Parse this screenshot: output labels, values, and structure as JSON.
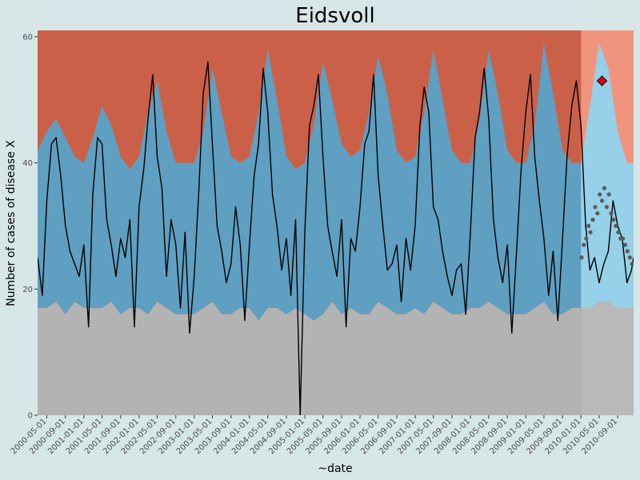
{
  "chart_data": {
    "type": "area",
    "title": "Eidsvoll",
    "xlabel": "~date",
    "ylabel": "Number of cases of disease X",
    "ylim": [
      0,
      61
    ],
    "xlim": [
      "2000-03-01",
      "2010-12-15"
    ],
    "grid": false,
    "y_ticks": [
      0,
      20,
      40,
      60
    ],
    "x_ticks": [
      "2000-05-01",
      "2000-09-01",
      "2001-01-01",
      "2001-05-01",
      "2001-09-01",
      "2002-01-01",
      "2002-05-01",
      "2002-09-01",
      "2003-01-01",
      "2003-05-01",
      "2003-09-01",
      "2004-01-01",
      "2004-05-01",
      "2004-09-01",
      "2005-01-01",
      "2005-05-01",
      "2005-09-01",
      "2006-01-01",
      "2006-05-01",
      "2006-09-01",
      "2007-01-01",
      "2007-05-01",
      "2007-09-01",
      "2008-01-01",
      "2008-05-01",
      "2008-09-01",
      "2009-01-01",
      "2009-05-01",
      "2009-09-01",
      "2010-01-01",
      "2010-05-01",
      "2010-09-01"
    ],
    "colors": {
      "panel_background": "#b0b0b0",
      "baseline_band": "#b3b3b3",
      "expected_band": "#5f9fc1",
      "alert_band": "#cb6048",
      "forecast_expected_band": "#8ecde8",
      "forecast_alert_band": "#f08b73",
      "forecast_shade": "#ffffff",
      "observed_line": "#000000",
      "forecast_points": "#5a5a5a",
      "outbreak_marker": "#e0001a"
    },
    "series": [
      {
        "name": "Lower threshold",
        "x": [
          "2000-03-01",
          "2000-05-01",
          "2000-07-01",
          "2000-09-01",
          "2000-11-01",
          "2001-01-01",
          "2001-03-01",
          "2001-05-01",
          "2001-07-01",
          "2001-09-01",
          "2001-11-01",
          "2002-01-01",
          "2002-03-01",
          "2002-05-01",
          "2002-07-01",
          "2002-09-01",
          "2002-11-01",
          "2003-01-01",
          "2003-03-01",
          "2003-05-01",
          "2003-07-01",
          "2003-09-01",
          "2003-11-01",
          "2004-01-01",
          "2004-03-01",
          "2004-05-01",
          "2004-07-01",
          "2004-09-01",
          "2004-11-01",
          "2005-01-01",
          "2005-03-01",
          "2005-05-01",
          "2005-07-01",
          "2005-09-01",
          "2005-11-01",
          "2006-01-01",
          "2006-03-01",
          "2006-05-01",
          "2006-07-01",
          "2006-09-01",
          "2006-11-01",
          "2007-01-01",
          "2007-03-01",
          "2007-05-01",
          "2007-07-01",
          "2007-09-01",
          "2007-11-01",
          "2008-01-01",
          "2008-03-01",
          "2008-05-01",
          "2008-07-01",
          "2008-09-01",
          "2008-11-01",
          "2009-01-01",
          "2009-03-01",
          "2009-05-01",
          "2009-07-01",
          "2009-09-01",
          "2009-11-01",
          "2010-01-01",
          "2010-03-01",
          "2010-05-01",
          "2010-07-01",
          "2010-09-01",
          "2010-11-01",
          "2010-12-15"
        ],
        "values": [
          17,
          17,
          18,
          16,
          18,
          17,
          17,
          17,
          18,
          16,
          17,
          17,
          16,
          18,
          17,
          16,
          16,
          16,
          17,
          18,
          16,
          16,
          17,
          17,
          15,
          17,
          17,
          16,
          17,
          16,
          15,
          16,
          18,
          16,
          17,
          16,
          16,
          18,
          17,
          16,
          16,
          17,
          16,
          18,
          17,
          16,
          16,
          17,
          17,
          18,
          17,
          16,
          16,
          16,
          17,
          18,
          16,
          16,
          17,
          17,
          17,
          18,
          18,
          17,
          17,
          17
        ]
      },
      {
        "name": "Upper threshold",
        "x": [
          "2000-03-01",
          "2000-05-01",
          "2000-07-01",
          "2000-09-01",
          "2000-11-01",
          "2001-01-01",
          "2001-03-01",
          "2001-05-01",
          "2001-07-01",
          "2001-09-01",
          "2001-11-01",
          "2002-01-01",
          "2002-03-01",
          "2002-05-01",
          "2002-07-01",
          "2002-09-01",
          "2002-11-01",
          "2003-01-01",
          "2003-03-01",
          "2003-05-01",
          "2003-07-01",
          "2003-09-01",
          "2003-11-01",
          "2004-01-01",
          "2004-03-01",
          "2004-05-01",
          "2004-07-01",
          "2004-09-01",
          "2004-11-01",
          "2005-01-01",
          "2005-03-01",
          "2005-05-01",
          "2005-07-01",
          "2005-09-01",
          "2005-11-01",
          "2006-01-01",
          "2006-03-01",
          "2006-05-01",
          "2006-07-01",
          "2006-09-01",
          "2006-11-01",
          "2007-01-01",
          "2007-03-01",
          "2007-05-01",
          "2007-07-01",
          "2007-09-01",
          "2007-11-01",
          "2008-01-01",
          "2008-03-01",
          "2008-05-01",
          "2008-07-01",
          "2008-09-01",
          "2008-11-01",
          "2009-01-01",
          "2009-03-01",
          "2009-05-01",
          "2009-07-01",
          "2009-09-01",
          "2009-11-01",
          "2010-01-01",
          "2010-03-01",
          "2010-05-01",
          "2010-07-01",
          "2010-09-01",
          "2010-11-01",
          "2010-12-15"
        ],
        "values": [
          42,
          45,
          47,
          44,
          41,
          40,
          44,
          49,
          46,
          41,
          39,
          41,
          48,
          53,
          45,
          40,
          40,
          40,
          45,
          55,
          48,
          41,
          40,
          41,
          48,
          58,
          50,
          41,
          39,
          40,
          46,
          56,
          50,
          43,
          41,
          42,
          48,
          57,
          51,
          42,
          40,
          41,
          48,
          58,
          50,
          42,
          40,
          40,
          47,
          58,
          51,
          42,
          40,
          40,
          46,
          59,
          51,
          42,
          40,
          40,
          49,
          59,
          55,
          45,
          40,
          40
        ]
      },
      {
        "name": "Observed cases",
        "x": [
          "2000-03-01",
          "2000-04-01",
          "2000-05-01",
          "2000-06-01",
          "2000-07-01",
          "2000-08-01",
          "2000-09-01",
          "2000-10-01",
          "2000-11-01",
          "2000-12-01",
          "2001-01-01",
          "2001-02-01",
          "2001-03-01",
          "2001-04-01",
          "2001-05-01",
          "2001-06-01",
          "2001-07-01",
          "2001-08-01",
          "2001-09-01",
          "2001-10-01",
          "2001-11-01",
          "2001-12-01",
          "2002-01-01",
          "2002-02-01",
          "2002-03-01",
          "2002-04-01",
          "2002-05-01",
          "2002-06-01",
          "2002-07-01",
          "2002-08-01",
          "2002-09-01",
          "2002-10-01",
          "2002-11-01",
          "2002-12-01",
          "2003-01-01",
          "2003-02-01",
          "2003-03-01",
          "2003-04-01",
          "2003-05-01",
          "2003-06-01",
          "2003-07-01",
          "2003-08-01",
          "2003-09-01",
          "2003-10-01",
          "2003-11-01",
          "2003-12-01",
          "2004-01-01",
          "2004-02-01",
          "2004-03-01",
          "2004-04-01",
          "2004-05-01",
          "2004-06-01",
          "2004-07-01",
          "2004-08-01",
          "2004-09-01",
          "2004-10-01",
          "2004-11-01",
          "2004-12-01",
          "2005-01-01",
          "2005-02-01",
          "2005-03-01",
          "2005-04-01",
          "2005-05-01",
          "2005-06-01",
          "2005-07-01",
          "2005-08-01",
          "2005-09-01",
          "2005-10-01",
          "2005-11-01",
          "2005-12-01",
          "2006-01-01",
          "2006-02-01",
          "2006-03-01",
          "2006-04-01",
          "2006-05-01",
          "2006-06-01",
          "2006-07-01",
          "2006-08-01",
          "2006-09-01",
          "2006-10-01",
          "2006-11-01",
          "2006-12-01",
          "2007-01-01",
          "2007-02-01",
          "2007-03-01",
          "2007-04-01",
          "2007-05-01",
          "2007-06-01",
          "2007-07-01",
          "2007-08-01",
          "2007-09-01",
          "2007-10-01",
          "2007-11-01",
          "2007-12-01",
          "2008-01-01",
          "2008-02-01",
          "2008-03-01",
          "2008-04-01",
          "2008-05-01",
          "2008-06-01",
          "2008-07-01",
          "2008-08-01",
          "2008-09-01",
          "2008-10-01",
          "2008-11-01",
          "2008-12-01",
          "2009-01-01",
          "2009-02-01",
          "2009-03-01",
          "2009-04-01",
          "2009-05-01",
          "2009-06-01",
          "2009-07-01",
          "2009-08-01",
          "2009-09-01",
          "2009-10-01",
          "2009-11-01",
          "2009-12-01",
          "2010-01-01",
          "2010-02-01",
          "2010-03-01",
          "2010-04-01",
          "2010-05-01",
          "2010-06-01",
          "2010-07-01",
          "2010-08-01",
          "2010-09-01",
          "2010-10-01",
          "2010-11-01",
          "2010-12-01",
          "2010-12-15"
        ],
        "values": [
          25,
          19,
          34,
          43,
          44,
          38,
          30,
          26,
          24,
          22,
          27,
          14,
          35,
          44,
          43,
          31,
          27,
          22,
          28,
          25,
          31,
          14,
          33,
          39,
          47,
          54,
          41,
          36,
          22,
          31,
          27,
          17,
          29,
          13,
          22,
          36,
          51,
          56,
          43,
          30,
          26,
          21,
          24,
          33,
          27,
          15,
          27,
          38,
          43,
          55,
          48,
          35,
          30,
          23,
          28,
          19,
          31,
          0,
          29,
          46,
          49,
          54,
          41,
          30,
          26,
          22,
          31,
          14,
          28,
          26,
          33,
          43,
          45,
          54,
          38,
          30,
          23,
          24,
          27,
          18,
          28,
          23,
          30,
          46,
          52,
          48,
          33,
          31,
          26,
          22,
          19,
          23,
          24,
          16,
          29,
          44,
          48,
          55,
          47,
          31,
          25,
          21,
          27,
          13,
          26,
          39,
          48,
          54,
          41,
          34,
          28,
          19,
          26,
          15,
          28,
          41,
          49,
          53,
          46,
          30,
          23,
          25,
          21,
          24,
          26,
          34,
          30,
          28,
          21,
          23,
          25
        ]
      },
      {
        "name": "Forecast points",
        "x": [
          "2010-01-05",
          "2010-01-20",
          "2010-02-05",
          "2010-02-20",
          "2010-03-05",
          "2010-03-20",
          "2010-04-05",
          "2010-04-20",
          "2010-05-05",
          "2010-05-20",
          "2010-06-05",
          "2010-06-20",
          "2010-07-05",
          "2010-07-20",
          "2010-08-05",
          "2010-08-20",
          "2010-09-05",
          "2010-09-20",
          "2010-10-05",
          "2010-10-20",
          "2010-11-05",
          "2010-11-20",
          "2010-12-05"
        ],
        "values": [
          25,
          27,
          28,
          30,
          29,
          31,
          33,
          32,
          35,
          34,
          36,
          33,
          35,
          32,
          31,
          30,
          29,
          28,
          28,
          27,
          26,
          25,
          24
        ]
      }
    ],
    "forecast_region": {
      "x_start": "2010-01-01",
      "x_end": "2010-12-15"
    },
    "outbreak_marker": {
      "x": "2010-05-20",
      "y": 53
    }
  }
}
